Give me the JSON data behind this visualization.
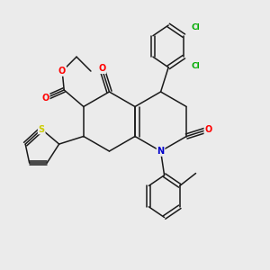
{
  "background_color": "#ebebeb",
  "figsize": [
    3.0,
    3.0
  ],
  "dpi": 100,
  "bond_color": "#1a1a1a",
  "atom_colors": {
    "O": "#ff0000",
    "N": "#0000cc",
    "S": "#cccc00",
    "Cl": "#00aa00",
    "C": "#1a1a1a"
  }
}
